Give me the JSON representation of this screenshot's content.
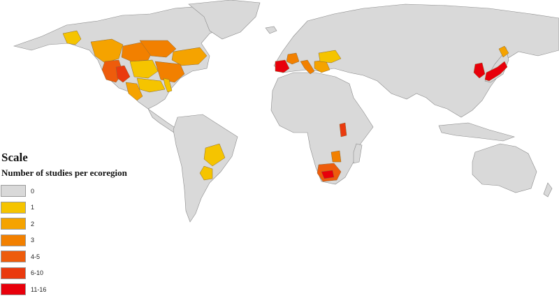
{
  "legend": {
    "title": "Scale",
    "subtitle": "Number of studies per ecoregion",
    "classes": [
      {
        "label": "0",
        "color": "#d9d9d9"
      },
      {
        "label": "1",
        "color": "#f5c400"
      },
      {
        "label": "2",
        "color": "#f5a300"
      },
      {
        "label": "3",
        "color": "#f28000"
      },
      {
        "label": "4-5",
        "color": "#ee5c0c"
      },
      {
        "label": "6-10",
        "color": "#ea3a0e"
      },
      {
        "label": "11-16",
        "color": "#e8000b"
      }
    ]
  },
  "colors": {
    "land": "#d9d9d9",
    "border": "#8a8a8a",
    "ocean": "#ffffff"
  }
}
